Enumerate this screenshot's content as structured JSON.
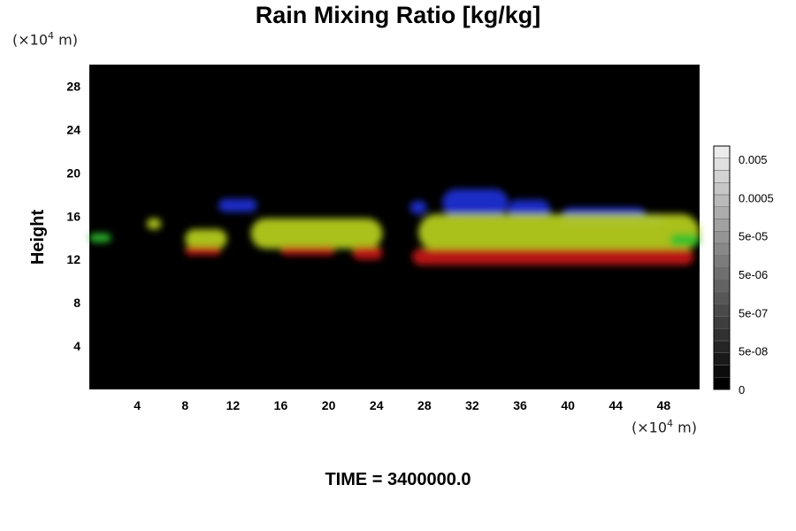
{
  "chart_data": {
    "type": "heatmap",
    "title": "Rain Mixing Ratio [kg/kg]",
    "ylabel": "Height",
    "x_unit": {
      "base": "(×10",
      "exp": "4",
      "tail": " m)"
    },
    "y_unit": {
      "base": "(×10",
      "exp": "4",
      "tail": " m)"
    },
    "time_label": "TIME = 3400000.0",
    "xlim": [
      0,
      51
    ],
    "ylim": [
      0,
      30
    ],
    "x_ticks": [
      4,
      8,
      12,
      16,
      20,
      24,
      28,
      32,
      36,
      40,
      44,
      48
    ],
    "y_ticks": [
      4,
      8,
      12,
      16,
      20,
      24,
      28
    ],
    "colorbar": {
      "tick_labels": [
        "0.005",
        "0.0005",
        "5e-05",
        "5e-06",
        "5e-07",
        "5e-08",
        "0"
      ],
      "levels": 20
    },
    "colors": {
      "background": "#000000",
      "upper": "#1f2fd8",
      "middle": "#b8d020",
      "edge": "#2ec02a",
      "lower": "#c81414"
    },
    "regions": [
      {
        "band": "upper",
        "x0": 10.8,
        "x1": 14.0,
        "y0": 16.4,
        "y1": 17.6
      },
      {
        "band": "upper",
        "x0": 26.8,
        "x1": 28.2,
        "y0": 16.2,
        "y1": 17.4
      },
      {
        "band": "upper",
        "x0": 29.5,
        "x1": 35.0,
        "y0": 16.0,
        "y1": 18.5
      },
      {
        "band": "upper",
        "x0": 35.0,
        "x1": 38.5,
        "y0": 15.8,
        "y1": 17.5
      },
      {
        "band": "upper",
        "x0": 39.5,
        "x1": 46.5,
        "y0": 15.2,
        "y1": 16.8
      },
      {
        "band": "upper",
        "x0": 46.5,
        "x1": 48.0,
        "y0": 15.2,
        "y1": 16.2
      },
      {
        "band": "middle",
        "x0": 4.8,
        "x1": 6.0,
        "y0": 14.8,
        "y1": 15.8
      },
      {
        "band": "middle",
        "x0": 8.0,
        "x1": 11.5,
        "y0": 13.0,
        "y1": 14.8
      },
      {
        "band": "middle",
        "x0": 13.5,
        "x1": 24.5,
        "y0": 13.0,
        "y1": 15.8
      },
      {
        "band": "middle",
        "x0": 27.5,
        "x1": 51.0,
        "y0": 12.8,
        "y1": 16.2
      },
      {
        "band": "edge",
        "x0": 0.0,
        "x1": 1.8,
        "y0": 13.6,
        "y1": 14.4
      },
      {
        "band": "edge",
        "x0": 48.5,
        "x1": 51.0,
        "y0": 13.2,
        "y1": 14.4
      },
      {
        "band": "lower",
        "x0": 8.0,
        "x1": 11.0,
        "y0": 12.4,
        "y1": 13.2
      },
      {
        "band": "lower",
        "x0": 16.0,
        "x1": 20.5,
        "y0": 12.4,
        "y1": 13.2
      },
      {
        "band": "lower",
        "x0": 22.0,
        "x1": 24.5,
        "y0": 12.0,
        "y1": 13.2
      },
      {
        "band": "lower",
        "x0": 27.0,
        "x1": 50.5,
        "y0": 11.5,
        "y1": 13.0
      }
    ]
  }
}
